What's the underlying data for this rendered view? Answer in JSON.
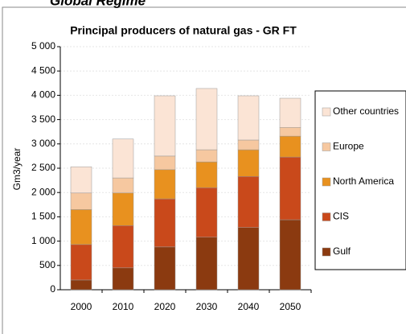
{
  "header": {
    "title": "Global Regime"
  },
  "chart_data": {
    "type": "stacked-bar",
    "title": "Principal producers of natural gas - GR FT",
    "y_label": "Gm3/year",
    "categories": [
      "2000",
      "2010",
      "2020",
      "2030",
      "2040",
      "2050"
    ],
    "series": [
      {
        "name": "Gulf",
        "color": "#8b3a10",
        "values": [
          200,
          450,
          880,
          1080,
          1280,
          1440
        ]
      },
      {
        "name": "CIS",
        "color": "#c9491b",
        "values": [
          730,
          870,
          990,
          1020,
          1050,
          1290
        ]
      },
      {
        "name": "North America",
        "color": "#e8911f",
        "values": [
          720,
          670,
          600,
          530,
          550,
          430
        ]
      },
      {
        "name": "Europe",
        "color": "#f6c8a0",
        "values": [
          340,
          310,
          280,
          250,
          200,
          180
        ]
      },
      {
        "name": "Other countries",
        "color": "#fbe4d5",
        "values": [
          540,
          800,
          1240,
          1260,
          910,
          600
        ]
      }
    ],
    "ylim": [
      0,
      5000
    ],
    "yticks": [
      0,
      500,
      {
        "value": 1000,
        "label": "1 000"
      },
      {
        "value": 1500,
        "label": "1 500"
      },
      {
        "value": 2000,
        "label": "2 000"
      },
      {
        "value": 2500,
        "label": "2 500"
      },
      {
        "value": 3000,
        "label": "3 000"
      },
      {
        "value": 3500,
        "label": "3 500"
      },
      {
        "value": 4000,
        "label": "4 000"
      },
      {
        "value": 4500,
        "label": "4 500"
      },
      {
        "value": 5000,
        "label": "5 000"
      }
    ],
    "grid": true
  }
}
